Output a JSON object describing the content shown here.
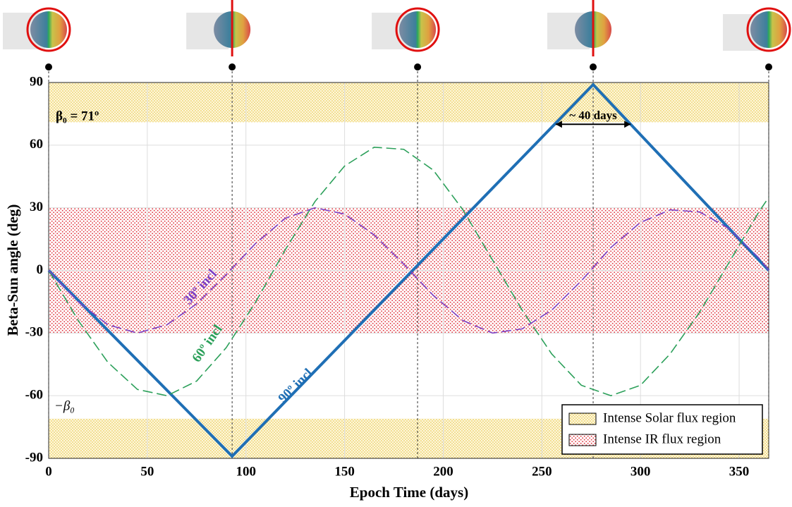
{
  "chart_data": {
    "type": "line",
    "xlabel": "Epoch Time (days)",
    "ylabel": "Beta-Sun angle (deg)",
    "xlim": [
      0,
      365
    ],
    "ylim": [
      -90,
      90
    ],
    "xticks": [
      0,
      50,
      100,
      150,
      200,
      250,
      300,
      350
    ],
    "yticks": [
      -90,
      -60,
      -30,
      0,
      30,
      60,
      90
    ],
    "grid": true,
    "legend": "lower right",
    "regions": [
      {
        "name": "Intense Solar flux region",
        "color": "#e8c23a",
        "ranges": [
          [
            71,
            90
          ],
          [
            -90,
            -71
          ]
        ]
      },
      {
        "name": "Intense IR flux region",
        "color": "#e0303a",
        "ranges": [
          [
            -30,
            30
          ]
        ]
      }
    ],
    "beta_label": "β₀ = 71º",
    "neg_beta_label": "−β₀",
    "markers": [
      0,
      93,
      187,
      276,
      365
    ],
    "span": {
      "text": "~ 40 days",
      "x": [
        257,
        295
      ],
      "y": 70
    },
    "series": [
      {
        "label": "90º incl",
        "color": "#1f6fb5",
        "style": "solid",
        "x": [
          0,
          93,
          276,
          365
        ],
        "values": [
          0,
          -89,
          89,
          0
        ]
      },
      {
        "label": "60º incl",
        "color": "#2ca05a",
        "style": "dashed",
        "x": [
          0,
          15,
          30,
          45,
          60,
          75,
          90,
          105,
          120,
          135,
          150,
          165,
          180,
          195,
          210,
          225,
          240,
          255,
          270,
          285,
          300,
          315,
          330,
          345,
          360,
          365
        ],
        "values": [
          0,
          -24,
          -44,
          -57,
          -60,
          -53,
          -37,
          -15,
          10,
          33,
          50,
          59,
          58,
          48,
          29,
          5,
          -19,
          -40,
          -55,
          -60,
          -55,
          -40,
          -20,
          4,
          28,
          35
        ]
      },
      {
        "label": "30º incl",
        "color": "#7b3fc4",
        "style": "dashed",
        "x": [
          0,
          15,
          30,
          45,
          60,
          75,
          90,
          105,
          120,
          135,
          150,
          165,
          180,
          195,
          210,
          225,
          240,
          255,
          270,
          285,
          300,
          315,
          330,
          345,
          360,
          365
        ],
        "values": [
          0,
          -15,
          -26,
          -30,
          -26,
          -16,
          -2,
          13,
          25,
          30,
          27,
          17,
          3,
          -12,
          -24,
          -30,
          -28,
          -19,
          -5,
          11,
          23,
          29,
          28,
          20,
          6,
          0
        ]
      }
    ]
  }
}
